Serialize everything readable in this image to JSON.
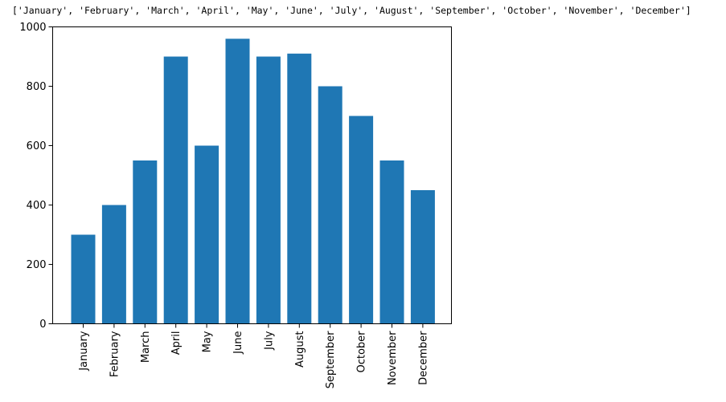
{
  "console": {
    "output_text": "['January', 'February', 'March', 'April', 'May', 'June', 'July', 'August', 'September', 'October', 'November', 'December']"
  },
  "colors": {
    "bar": "#1f77b4",
    "axis": "#000000",
    "background": "#ffffff"
  },
  "chart_data": {
    "type": "bar",
    "categories": [
      "January",
      "February",
      "March",
      "April",
      "May",
      "June",
      "July",
      "August",
      "September",
      "October",
      "November",
      "December"
    ],
    "values": [
      300,
      400,
      550,
      900,
      600,
      960,
      900,
      910,
      800,
      700,
      550,
      450
    ],
    "title": "",
    "xlabel": "",
    "ylabel": "",
    "ylim": [
      0,
      1000
    ],
    "yticks": [
      0,
      200,
      400,
      600,
      800,
      1000
    ],
    "x_tick_rotation": "vertical",
    "grid": false,
    "legend": "none"
  }
}
